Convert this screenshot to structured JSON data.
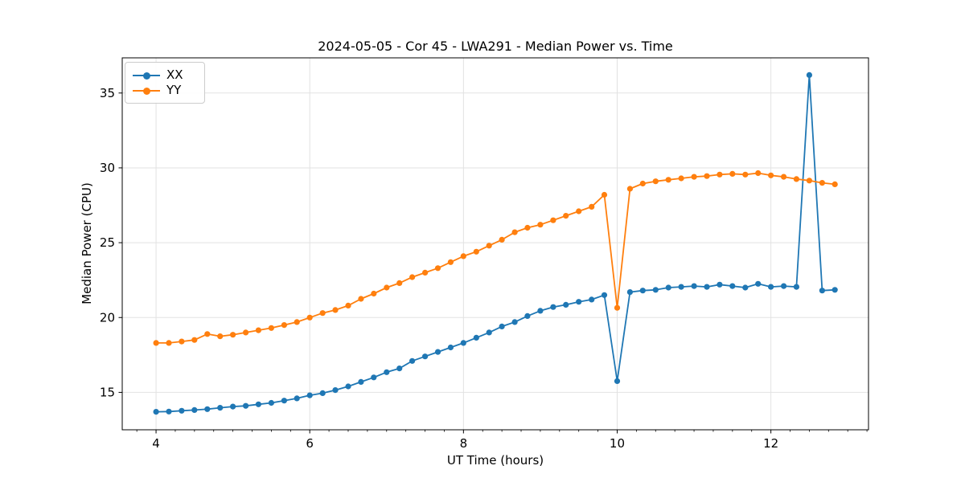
{
  "chart_data": {
    "type": "line",
    "title": "2024-05-05 - Cor 45 - LWA291 - Median Power vs. Time",
    "xlabel": "UT Time (hours)",
    "ylabel": "Median Power (CPU)",
    "xlim": [
      3.56,
      13.27
    ],
    "ylim": [
      12.5,
      37.35
    ],
    "x_ticks": [
      4,
      6,
      8,
      10,
      12
    ],
    "x_minor_tick_step": 0.25,
    "x_minor_tick_start": 3.75,
    "x_minor_tick_end": 13.25,
    "y_ticks": [
      15,
      20,
      25,
      30,
      35
    ],
    "grid": true,
    "legend_position": "upper-left",
    "x": [
      4.0,
      4.167,
      4.333,
      4.5,
      4.667,
      4.833,
      5.0,
      5.167,
      5.333,
      5.5,
      5.667,
      5.833,
      6.0,
      6.167,
      6.333,
      6.5,
      6.667,
      6.833,
      7.0,
      7.167,
      7.333,
      7.5,
      7.667,
      7.833,
      8.0,
      8.167,
      8.333,
      8.5,
      8.667,
      8.833,
      9.0,
      9.167,
      9.333,
      9.5,
      9.667,
      9.833,
      10.0,
      10.167,
      10.333,
      10.5,
      10.667,
      10.833,
      11.0,
      11.167,
      11.333,
      11.5,
      11.667,
      11.833,
      12.0,
      12.167,
      12.333,
      12.5,
      12.667,
      12.833
    ],
    "series": [
      {
        "name": "XX",
        "color": "#1f77b4",
        "values": [
          13.7,
          13.72,
          13.77,
          13.82,
          13.88,
          13.97,
          14.05,
          14.1,
          14.2,
          14.3,
          14.45,
          14.6,
          14.8,
          14.95,
          15.15,
          15.4,
          15.7,
          16.0,
          16.35,
          16.6,
          17.1,
          17.4,
          17.7,
          18.0,
          18.3,
          18.65,
          19.0,
          19.4,
          19.7,
          20.1,
          20.45,
          20.7,
          20.85,
          21.05,
          21.2,
          21.5,
          15.75,
          21.7,
          21.8,
          21.85,
          22.0,
          22.05,
          22.1,
          22.05,
          22.2,
          22.1,
          22.0,
          22.25,
          22.05,
          22.1,
          22.05,
          36.2,
          21.8,
          21.85
        ]
      },
      {
        "name": "YY",
        "color": "#ff7f0e",
        "values": [
          18.3,
          18.3,
          18.4,
          18.5,
          18.9,
          18.75,
          18.85,
          19.0,
          19.15,
          19.3,
          19.5,
          19.7,
          20.0,
          20.3,
          20.5,
          20.8,
          21.25,
          21.6,
          22.0,
          22.3,
          22.7,
          23.0,
          23.3,
          23.7,
          24.1,
          24.4,
          24.8,
          25.2,
          25.7,
          26.0,
          26.2,
          26.5,
          26.8,
          27.1,
          27.4,
          28.2,
          20.65,
          28.6,
          28.95,
          29.1,
          29.2,
          29.3,
          29.4,
          29.45,
          29.55,
          29.6,
          29.55,
          29.65,
          29.5,
          29.4,
          29.25,
          29.15,
          29.0,
          28.9
        ]
      }
    ],
    "style": {
      "background": "#ffffff",
      "grid_color": "#e2e2e2",
      "spine_color": "#000000",
      "text_color": "#000000",
      "line_width": 1.8,
      "marker_radius": 3.6
    }
  }
}
